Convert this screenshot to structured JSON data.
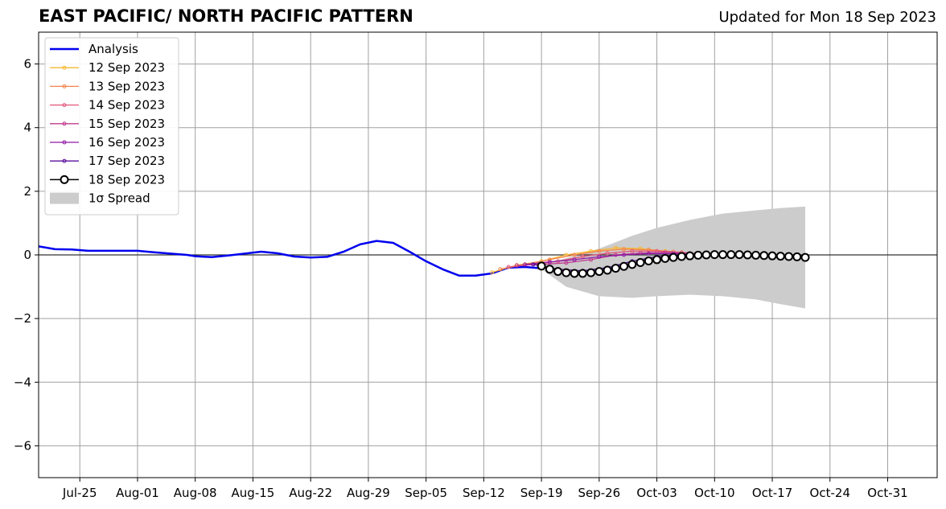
{
  "header": {
    "title": "EAST PACIFIC/ NORTH PACIFIC PATTERN",
    "updated": "Updated for Mon 18 Sep 2023"
  },
  "chart_data": {
    "type": "line",
    "title": "EAST PACIFIC/ NORTH PACIFIC PATTERN",
    "subtitle": "Updated for Mon 18 Sep 2023",
    "xlabel": "",
    "ylabel": "",
    "x_type": "date",
    "x_ticks": [
      {
        "date": "2023-07-25",
        "label": "Jul-25"
      },
      {
        "date": "2023-08-01",
        "label": "Aug-01"
      },
      {
        "date": "2023-08-08",
        "label": "Aug-08"
      },
      {
        "date": "2023-08-15",
        "label": "Aug-15"
      },
      {
        "date": "2023-08-22",
        "label": "Aug-22"
      },
      {
        "date": "2023-08-29",
        "label": "Aug-29"
      },
      {
        "date": "2023-09-05",
        "label": "Sep-05"
      },
      {
        "date": "2023-09-12",
        "label": "Sep-12"
      },
      {
        "date": "2023-09-19",
        "label": "Sep-19"
      },
      {
        "date": "2023-09-26",
        "label": "Sep-26"
      },
      {
        "date": "2023-10-03",
        "label": "Oct-03"
      },
      {
        "date": "2023-10-10",
        "label": "Oct-10"
      },
      {
        "date": "2023-10-17",
        "label": "Oct-17"
      },
      {
        "date": "2023-10-24",
        "label": "Oct-24"
      },
      {
        "date": "2023-10-31",
        "label": "Oct-31"
      }
    ],
    "xlim": [
      "2023-07-20",
      "2023-11-06"
    ],
    "ylim": [
      -7,
      7
    ],
    "y_ticks": [
      {
        "value": -6,
        "label": "−6"
      },
      {
        "value": -4,
        "label": "−4"
      },
      {
        "value": -2,
        "label": "−2"
      },
      {
        "value": 0,
        "label": "0"
      },
      {
        "value": 2,
        "label": "2"
      },
      {
        "value": 4,
        "label": "4"
      },
      {
        "value": 6,
        "label": "6"
      }
    ],
    "grid": true,
    "zero_line": true,
    "legend_position": "top-left",
    "analysis": {
      "name": "Analysis",
      "color": "#0000ee",
      "points": [
        [
          "2023-07-20",
          0.27
        ],
        [
          "2023-07-22",
          0.18
        ],
        [
          "2023-07-24",
          0.17
        ],
        [
          "2023-07-26",
          0.13
        ],
        [
          "2023-07-28",
          0.13
        ],
        [
          "2023-07-30",
          0.13
        ],
        [
          "2023-08-01",
          0.13
        ],
        [
          "2023-08-03",
          0.08
        ],
        [
          "2023-08-05",
          0.04
        ],
        [
          "2023-08-07",
          0.0
        ],
        [
          "2023-08-08",
          -0.04
        ],
        [
          "2023-08-10",
          -0.07
        ],
        [
          "2023-08-12",
          -0.02
        ],
        [
          "2023-08-14",
          0.04
        ],
        [
          "2023-08-16",
          0.1
        ],
        [
          "2023-08-18",
          0.05
        ],
        [
          "2023-08-20",
          -0.05
        ],
        [
          "2023-08-22",
          -0.08
        ],
        [
          "2023-08-24",
          -0.06
        ],
        [
          "2023-08-26",
          0.1
        ],
        [
          "2023-08-28",
          0.33
        ],
        [
          "2023-08-30",
          0.44
        ],
        [
          "2023-09-01",
          0.38
        ],
        [
          "2023-09-03",
          0.1
        ],
        [
          "2023-09-05",
          -0.2
        ],
        [
          "2023-09-07",
          -0.45
        ],
        [
          "2023-09-09",
          -0.65
        ],
        [
          "2023-09-11",
          -0.65
        ],
        [
          "2023-09-13",
          -0.58
        ],
        [
          "2023-09-15",
          -0.4
        ],
        [
          "2023-09-17",
          -0.38
        ],
        [
          "2023-09-19",
          -0.42
        ]
      ]
    },
    "forecasts": [
      {
        "name": "12 Sep 2023",
        "color": "#f7b733",
        "points": [
          [
            "2023-09-13",
            -0.55
          ],
          [
            "2023-09-16",
            -0.32
          ],
          [
            "2023-09-19",
            -0.2
          ],
          [
            "2023-09-22",
            0.0
          ],
          [
            "2023-09-25",
            0.12
          ],
          [
            "2023-09-28",
            0.22
          ],
          [
            "2023-10-01",
            0.2
          ],
          [
            "2023-10-04",
            0.12
          ],
          [
            "2023-10-06",
            0.05
          ]
        ]
      },
      {
        "name": "13 Sep 2023",
        "color": "#f4844c",
        "points": [
          [
            "2023-09-14",
            -0.45
          ],
          [
            "2023-09-17",
            -0.3
          ],
          [
            "2023-09-20",
            -0.15
          ],
          [
            "2023-09-23",
            0.0
          ],
          [
            "2023-09-26",
            0.12
          ],
          [
            "2023-09-29",
            0.18
          ],
          [
            "2023-10-02",
            0.16
          ],
          [
            "2023-10-05",
            0.1
          ],
          [
            "2023-10-07",
            0.04
          ]
        ]
      },
      {
        "name": "14 Sep 2023",
        "color": "#e3567a",
        "points": [
          [
            "2023-09-15",
            -0.38
          ],
          [
            "2023-09-18",
            -0.3
          ],
          [
            "2023-09-21",
            -0.2
          ],
          [
            "2023-09-24",
            -0.05
          ],
          [
            "2023-09-27",
            0.05
          ],
          [
            "2023-09-30",
            0.12
          ],
          [
            "2023-10-03",
            0.12
          ],
          [
            "2023-10-06",
            0.08
          ],
          [
            "2023-10-08",
            0.04
          ]
        ]
      },
      {
        "name": "15 Sep 2023",
        "color": "#c13b8d",
        "points": [
          [
            "2023-09-16",
            -0.33
          ],
          [
            "2023-09-19",
            -0.3
          ],
          [
            "2023-09-22",
            -0.25
          ],
          [
            "2023-09-25",
            -0.15
          ],
          [
            "2023-09-28",
            0.0
          ],
          [
            "2023-10-01",
            0.06
          ],
          [
            "2023-10-04",
            0.08
          ],
          [
            "2023-10-07",
            0.05
          ],
          [
            "2023-10-09",
            0.02
          ]
        ]
      },
      {
        "name": "16 Sep 2023",
        "color": "#9018a6",
        "points": [
          [
            "2023-09-17",
            -0.3
          ],
          [
            "2023-09-20",
            -0.22
          ],
          [
            "2023-09-23",
            -0.15
          ],
          [
            "2023-09-26",
            -0.06
          ],
          [
            "2023-09-29",
            0.0
          ],
          [
            "2023-10-02",
            0.04
          ],
          [
            "2023-10-05",
            0.04
          ],
          [
            "2023-10-08",
            0.02
          ],
          [
            "2023-10-10",
            0.0
          ]
        ]
      },
      {
        "name": "17 Sep 2023",
        "color": "#5a0f9b",
        "points": [
          [
            "2023-09-18",
            -0.3
          ],
          [
            "2023-09-21",
            -0.45
          ],
          [
            "2023-09-24",
            -0.5
          ],
          [
            "2023-09-27",
            -0.4
          ],
          [
            "2023-09-30",
            -0.2
          ],
          [
            "2023-10-03",
            -0.05
          ],
          [
            "2023-10-06",
            0.0
          ],
          [
            "2023-10-09",
            0.0
          ],
          [
            "2023-10-11",
            0.0
          ]
        ]
      }
    ],
    "latest": {
      "name": "18 Sep 2023",
      "color": "#000000",
      "marker_fill": "#ffffff",
      "points": [
        [
          "2023-09-19",
          -0.35
        ],
        [
          "2023-09-20",
          -0.45
        ],
        [
          "2023-09-21",
          -0.52
        ],
        [
          "2023-09-22",
          -0.56
        ],
        [
          "2023-09-23",
          -0.58
        ],
        [
          "2023-09-24",
          -0.58
        ],
        [
          "2023-09-25",
          -0.56
        ],
        [
          "2023-09-26",
          -0.52
        ],
        [
          "2023-09-27",
          -0.48
        ],
        [
          "2023-09-28",
          -0.42
        ],
        [
          "2023-09-29",
          -0.36
        ],
        [
          "2023-09-30",
          -0.3
        ],
        [
          "2023-10-01",
          -0.24
        ],
        [
          "2023-10-02",
          -0.19
        ],
        [
          "2023-10-03",
          -0.15
        ],
        [
          "2023-10-04",
          -0.11
        ],
        [
          "2023-10-05",
          -0.08
        ],
        [
          "2023-10-06",
          -0.05
        ],
        [
          "2023-10-07",
          -0.03
        ],
        [
          "2023-10-08",
          -0.01
        ],
        [
          "2023-10-09",
          0.0
        ],
        [
          "2023-10-10",
          0.01
        ],
        [
          "2023-10-11",
          0.01
        ],
        [
          "2023-10-12",
          0.01
        ],
        [
          "2023-10-13",
          0.01
        ],
        [
          "2023-10-14",
          0.0
        ],
        [
          "2023-10-15",
          -0.01
        ],
        [
          "2023-10-16",
          -0.02
        ],
        [
          "2023-10-17",
          -0.03
        ],
        [
          "2023-10-18",
          -0.04
        ],
        [
          "2023-10-19",
          -0.05
        ],
        [
          "2023-10-20",
          -0.06
        ],
        [
          "2023-10-21",
          -0.08
        ]
      ]
    },
    "spread": {
      "name": "1σ Spread",
      "color": "#cccccc",
      "upper": [
        [
          "2023-09-19",
          -0.3
        ],
        [
          "2023-09-22",
          -0.1
        ],
        [
          "2023-09-26",
          0.2
        ],
        [
          "2023-09-30",
          0.6
        ],
        [
          "2023-10-03",
          0.85
        ],
        [
          "2023-10-07",
          1.1
        ],
        [
          "2023-10-11",
          1.3
        ],
        [
          "2023-10-15",
          1.4
        ],
        [
          "2023-10-18",
          1.47
        ],
        [
          "2023-10-21",
          1.52
        ]
      ],
      "lower": [
        [
          "2023-09-19",
          -0.45
        ],
        [
          "2023-09-22",
          -1.0
        ],
        [
          "2023-09-26",
          -1.3
        ],
        [
          "2023-09-30",
          -1.35
        ],
        [
          "2023-10-03",
          -1.3
        ],
        [
          "2023-10-07",
          -1.25
        ],
        [
          "2023-10-11",
          -1.3
        ],
        [
          "2023-10-15",
          -1.4
        ],
        [
          "2023-10-18",
          -1.55
        ],
        [
          "2023-10-21",
          -1.68
        ]
      ]
    },
    "legend": [
      {
        "label": "Analysis",
        "kind": "analysis"
      },
      {
        "label": "12 Sep 2023",
        "kind": "forecast"
      },
      {
        "label": "13 Sep 2023",
        "kind": "forecast"
      },
      {
        "label": "14 Sep 2023",
        "kind": "forecast"
      },
      {
        "label": "15 Sep 2023",
        "kind": "forecast"
      },
      {
        "label": "16 Sep 2023",
        "kind": "forecast"
      },
      {
        "label": "17 Sep 2023",
        "kind": "forecast"
      },
      {
        "label": "18 Sep 2023",
        "kind": "latest"
      },
      {
        "label": "1σ Spread",
        "kind": "spread"
      }
    ]
  }
}
